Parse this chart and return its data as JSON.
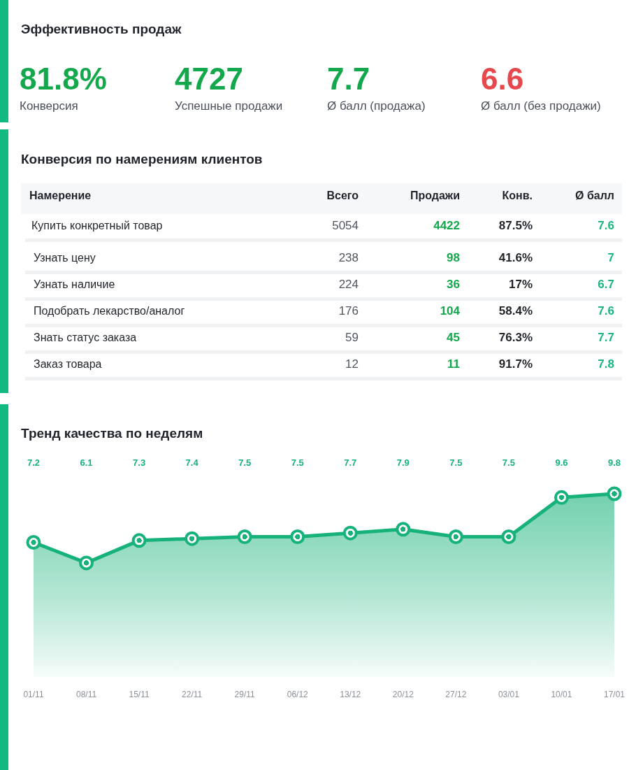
{
  "chart_data": [
    {
      "type": "other",
      "title": "Эффективность продаж",
      "categories": [
        "Конверсия",
        "Успешные продажи",
        "Ø балл (продажа)",
        "Ø балл (без продажи)"
      ],
      "values": [
        81.8,
        4727,
        7.7,
        6.6
      ],
      "value_labels": [
        "81.8%",
        "4727",
        "7.7",
        "6.6"
      ],
      "colors": [
        "#13a84b",
        "#13a84b",
        "#13a84b",
        "#e5484d"
      ]
    },
    {
      "type": "other",
      "title": "Конверсия по намерениям клиентов",
      "ylabel": "Намерение",
      "categories": [
        "Купить конкретный товар",
        "Узнать цену",
        "Узнать наличие",
        "Подобрать лекарство/аналог",
        "Знать статус заказа",
        "Заказ товара"
      ],
      "series": [
        {
          "name": "Всего",
          "values": [
            5054,
            238,
            224,
            176,
            59,
            12
          ]
        },
        {
          "name": "Продажи",
          "values": [
            4422,
            98,
            36,
            104,
            45,
            11
          ]
        },
        {
          "name": "Конв.",
          "values": [
            87.5,
            41.6,
            17,
            58.4,
            76.3,
            91.7
          ],
          "value_labels": [
            "87.5%",
            "41.6%",
            "17%",
            "58.4%",
            "76.3%",
            "91.7%"
          ]
        },
        {
          "name": "Ø балл",
          "values": [
            7.6,
            7,
            6.7,
            7.6,
            7.7,
            7.8
          ]
        }
      ],
      "data_labels": true
    },
    {
      "type": "area",
      "title": "Тренд качества по неделям",
      "categories": [
        "01/11",
        "08/11",
        "15/11",
        "22/11",
        "29/11",
        "06/12",
        "13/12",
        "20/12",
        "27/12",
        "03/01",
        "10/01",
        "17/01"
      ],
      "values": [
        7.2,
        6.1,
        7.3,
        7.4,
        7.5,
        7.5,
        7.7,
        7.9,
        7.5,
        7.5,
        9.6,
        9.8
      ],
      "color": "#16b27a",
      "marker": "circle",
      "data_labels": true
    }
  ]
}
